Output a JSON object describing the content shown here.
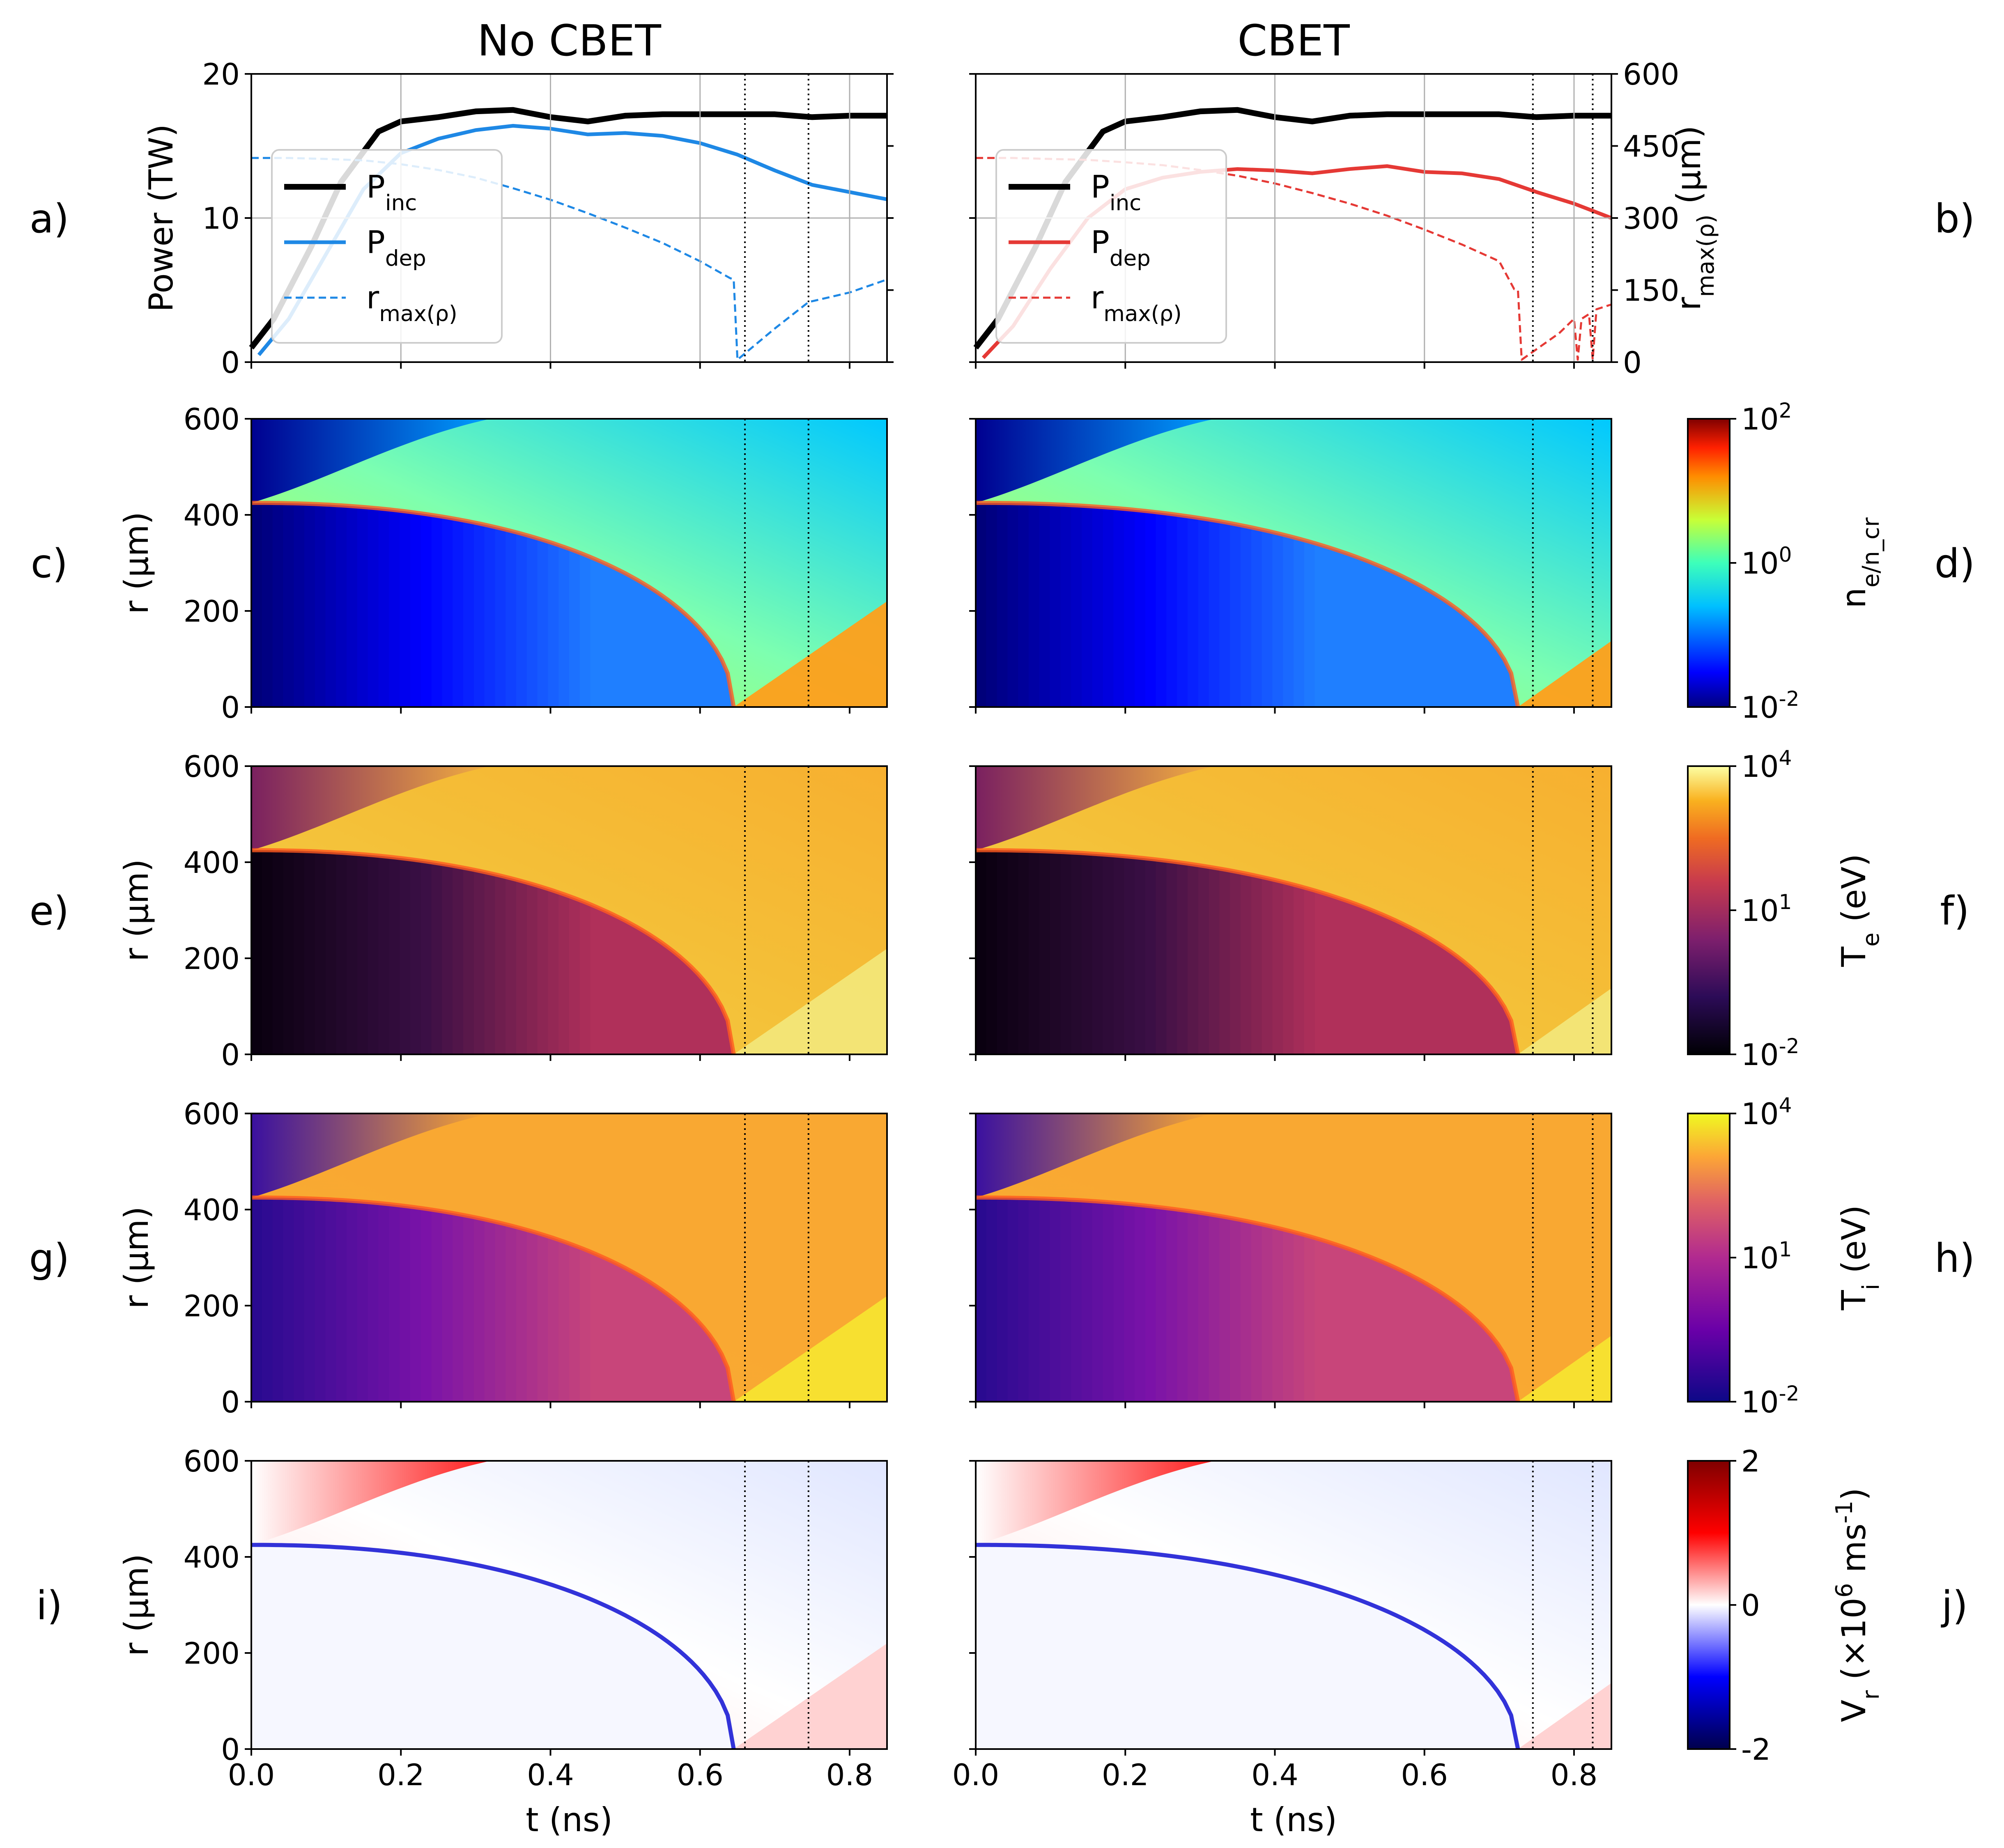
{
  "columns": [
    {
      "title": "No CBET",
      "panel_labels": [
        "a)",
        "c)",
        "e)",
        "g)",
        "i)"
      ]
    },
    {
      "title": "CBET",
      "panel_labels": [
        "b)",
        "d)",
        "f)",
        "h)",
        "j)"
      ]
    }
  ],
  "shared": {
    "x_label": "t (ns)",
    "x_ticks": [
      "0.0",
      "0.2",
      "0.4",
      "0.6",
      "0.8"
    ],
    "r_label": "r (μm)",
    "r_ticks": [
      "0",
      "200",
      "400",
      "600"
    ],
    "power_label": "Power (TW)",
    "power_ticks": [
      "0",
      "10",
      "20"
    ],
    "rmax_label": "r_max(ρ) (μm)",
    "rmax_ticks": [
      "0",
      "150",
      "300",
      "450",
      "600"
    ],
    "legend": [
      "P_inc",
      "P_dep",
      "r_max(ρ)"
    ]
  },
  "colorbars": [
    {
      "label": "n_e/n_cr",
      "ticks": [
        "10^-2",
        "10^0",
        "10^2"
      ],
      "colormap": "jet"
    },
    {
      "label": "T_e (eV)",
      "ticks": [
        "10^-2",
        "10^1",
        "10^4"
      ],
      "colormap": "inferno"
    },
    {
      "label": "T_i (eV)",
      "ticks": [
        "10^-2",
        "10^1",
        "10^4"
      ],
      "colormap": "plasma"
    },
    {
      "label": "V_r (×10^6 ms^-1)",
      "ticks": [
        "-2",
        "0",
        "2"
      ],
      "colormap": "seismic"
    }
  ],
  "colors": {
    "P_inc": "#000000",
    "P_dep_no_cbet": "#1e88e5",
    "P_dep_cbet": "#e53935"
  },
  "chart_data": [
    {
      "type": "line",
      "panel": "a",
      "title": "No CBET",
      "xlim": [
        0,
        0.85
      ],
      "ylim": [
        0,
        20
      ],
      "ylim_right": [
        0,
        600
      ],
      "vlines": [
        0.66,
        0.745
      ],
      "series": [
        {
          "name": "P_inc",
          "axis": "left",
          "x": [
            0,
            0.03,
            0.08,
            0.12,
            0.17,
            0.2,
            0.25,
            0.3,
            0.35,
            0.4,
            0.45,
            0.5,
            0.55,
            0.6,
            0.65,
            0.7,
            0.75,
            0.8,
            0.85
          ],
          "y": [
            1.0,
            3.0,
            8.0,
            12.5,
            16.0,
            16.7,
            17.0,
            17.4,
            17.5,
            17.0,
            16.7,
            17.1,
            17.2,
            17.2,
            17.2,
            17.2,
            17.0,
            17.1,
            17.1
          ]
        },
        {
          "name": "P_dep",
          "axis": "left",
          "x": [
            0.01,
            0.05,
            0.1,
            0.15,
            0.2,
            0.25,
            0.3,
            0.35,
            0.4,
            0.45,
            0.5,
            0.55,
            0.6,
            0.65,
            0.7,
            0.75,
            0.8,
            0.85
          ],
          "y": [
            0.5,
            3.0,
            7.5,
            12.0,
            14.5,
            15.5,
            16.1,
            16.4,
            16.2,
            15.8,
            15.9,
            15.7,
            15.2,
            14.4,
            13.3,
            12.3,
            11.8,
            11.3
          ]
        },
        {
          "name": "r_max(ρ)",
          "axis": "right",
          "x": [
            0,
            0.05,
            0.1,
            0.15,
            0.2,
            0.25,
            0.3,
            0.35,
            0.4,
            0.45,
            0.5,
            0.55,
            0.6,
            0.64,
            0.645,
            0.65,
            0.7,
            0.745,
            0.8,
            0.85
          ],
          "y": [
            425,
            425,
            423,
            420,
            412,
            400,
            384,
            362,
            338,
            310,
            280,
            248,
            210,
            175,
            172,
            5,
            70,
            125,
            145,
            172
          ]
        }
      ]
    },
    {
      "type": "line",
      "panel": "b",
      "title": "CBET",
      "xlim": [
        0,
        0.85
      ],
      "ylim": [
        0,
        20
      ],
      "ylim_right": [
        0,
        600
      ],
      "vlines": [
        0.745,
        0.825
      ],
      "series": [
        {
          "name": "P_inc",
          "axis": "left",
          "x": [
            0,
            0.03,
            0.08,
            0.12,
            0.17,
            0.2,
            0.25,
            0.3,
            0.35,
            0.4,
            0.45,
            0.5,
            0.55,
            0.6,
            0.65,
            0.7,
            0.75,
            0.8,
            0.85
          ],
          "y": [
            1.0,
            3.0,
            8.0,
            12.5,
            16.0,
            16.7,
            17.0,
            17.4,
            17.5,
            17.0,
            16.7,
            17.1,
            17.2,
            17.2,
            17.2,
            17.2,
            17.0,
            17.1,
            17.1
          ]
        },
        {
          "name": "P_dep",
          "axis": "left",
          "x": [
            0.01,
            0.05,
            0.1,
            0.15,
            0.2,
            0.25,
            0.3,
            0.35,
            0.4,
            0.45,
            0.5,
            0.55,
            0.6,
            0.65,
            0.7,
            0.75,
            0.8,
            0.85
          ],
          "y": [
            0.3,
            2.5,
            6.5,
            10.0,
            12.0,
            12.8,
            13.2,
            13.4,
            13.3,
            13.1,
            13.4,
            13.6,
            13.2,
            13.1,
            12.7,
            11.8,
            11.0,
            10.0
          ]
        },
        {
          "name": "r_max(ρ)",
          "axis": "right",
          "x": [
            0,
            0.05,
            0.1,
            0.15,
            0.2,
            0.25,
            0.3,
            0.35,
            0.4,
            0.45,
            0.5,
            0.55,
            0.6,
            0.65,
            0.7,
            0.72,
            0.725,
            0.73,
            0.78,
            0.8,
            0.805,
            0.81,
            0.82,
            0.825,
            0.83,
            0.85
          ],
          "y": [
            425,
            425,
            423,
            421,
            416,
            410,
            400,
            388,
            372,
            352,
            330,
            305,
            276,
            245,
            210,
            152,
            150,
            5,
            60,
            90,
            5,
            90,
            100,
            5,
            110,
            120
          ]
        }
      ]
    },
    {
      "type": "heatmap",
      "panel": "c",
      "quantity": "n_e/n_cr",
      "xlabel": "",
      "ylabel": "r (μm)",
      "xlim": [
        0,
        0.85
      ],
      "ylim": [
        0,
        600
      ],
      "color_scale": "log",
      "clim": [
        0.01,
        100
      ],
      "vlines": [
        0.66,
        0.745
      ],
      "bang_time_ns": 0.645
    },
    {
      "type": "heatmap",
      "panel": "d",
      "quantity": "n_e/n_cr",
      "xlim": [
        0,
        0.85
      ],
      "ylim": [
        0,
        600
      ],
      "color_scale": "log",
      "clim": [
        0.01,
        100
      ],
      "vlines": [
        0.745,
        0.825
      ],
      "bang_time_ns": 0.725
    },
    {
      "type": "heatmap",
      "panel": "e",
      "quantity": "T_e (eV)",
      "ylabel": "r (μm)",
      "xlim": [
        0,
        0.85
      ],
      "ylim": [
        0,
        600
      ],
      "color_scale": "log",
      "clim": [
        0.01,
        10000
      ],
      "vlines": [
        0.66,
        0.745
      ],
      "bang_time_ns": 0.645
    },
    {
      "type": "heatmap",
      "panel": "f",
      "quantity": "T_e (eV)",
      "xlim": [
        0,
        0.85
      ],
      "ylim": [
        0,
        600
      ],
      "color_scale": "log",
      "clim": [
        0.01,
        10000
      ],
      "vlines": [
        0.745,
        0.825
      ],
      "bang_time_ns": 0.725
    },
    {
      "type": "heatmap",
      "panel": "g",
      "quantity": "T_i (eV)",
      "ylabel": "r (μm)",
      "xlim": [
        0,
        0.85
      ],
      "ylim": [
        0,
        600
      ],
      "color_scale": "log",
      "clim": [
        0.01,
        10000
      ],
      "vlines": [
        0.66,
        0.745
      ],
      "bang_time_ns": 0.645
    },
    {
      "type": "heatmap",
      "panel": "h",
      "quantity": "T_i (eV)",
      "xlim": [
        0,
        0.85
      ],
      "ylim": [
        0,
        600
      ],
      "color_scale": "log",
      "clim": [
        0.01,
        10000
      ],
      "vlines": [
        0.745,
        0.825
      ],
      "bang_time_ns": 0.725
    },
    {
      "type": "heatmap",
      "panel": "i",
      "quantity": "V_r (×10^6 ms^-1)",
      "xlabel": "t (ns)",
      "ylabel": "r (μm)",
      "xlim": [
        0,
        0.85
      ],
      "ylim": [
        0,
        600
      ],
      "color_scale": "linear",
      "clim": [
        -2,
        2
      ],
      "vlines": [
        0.66,
        0.745
      ],
      "bang_time_ns": 0.645
    },
    {
      "type": "heatmap",
      "panel": "j",
      "quantity": "V_r (×10^6 ms^-1)",
      "xlabel": "t (ns)",
      "xlim": [
        0,
        0.85
      ],
      "ylim": [
        0,
        600
      ],
      "color_scale": "linear",
      "clim": [
        -2,
        2
      ],
      "vlines": [
        0.745,
        0.825
      ],
      "bang_time_ns": 0.725
    }
  ]
}
